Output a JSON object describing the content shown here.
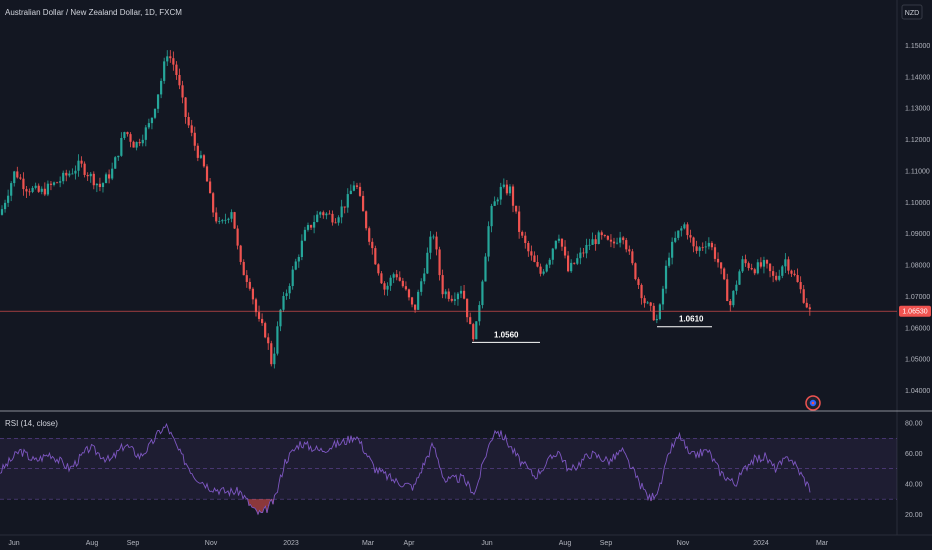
{
  "chart_data": [
    {
      "type": "candlestick",
      "title": "Australian Dollar / New Zealand Dollar, 1D, FXCM",
      "currency": "NZD",
      "last_price": "1.06530",
      "ylim": [
        1.037,
        1.153
      ],
      "yticks": [
        "1.15000",
        "1.14000",
        "1.13000",
        "1.12000",
        "1.11000",
        "1.10000",
        "1.09000",
        "1.08000",
        "1.07000",
        "1.06000",
        "1.05000",
        "1.04000"
      ],
      "x_labels": [
        "Jun",
        "Aug",
        "Sep",
        "Nov",
        "2023",
        "Mar",
        "Apr",
        "Jun",
        "Aug",
        "Sep",
        "Nov",
        "2024",
        "Mar"
      ],
      "price_path": [
        [
          0,
          1.096
        ],
        [
          15,
          1.11
        ],
        [
          25,
          1.105
        ],
        [
          40,
          1.103
        ],
        [
          60,
          1.107
        ],
        [
          80,
          1.112
        ],
        [
          100,
          1.105
        ],
        [
          112,
          1.11
        ],
        [
          125,
          1.123
        ],
        [
          135,
          1.118
        ],
        [
          150,
          1.125
        ],
        [
          162,
          1.14
        ],
        [
          167,
          1.148
        ],
        [
          175,
          1.143
        ],
        [
          185,
          1.128
        ],
        [
          195,
          1.118
        ],
        [
          205,
          1.11
        ],
        [
          212,
          1.098
        ],
        [
          220,
          1.092
        ],
        [
          232,
          1.098
        ],
        [
          240,
          1.08
        ],
        [
          250,
          1.074
        ],
        [
          258,
          1.062
        ],
        [
          266,
          1.058
        ],
        [
          272,
          1.048
        ],
        [
          280,
          1.065
        ],
        [
          290,
          1.075
        ],
        [
          305,
          1.09
        ],
        [
          320,
          1.097
        ],
        [
          335,
          1.095
        ],
        [
          348,
          1.101
        ],
        [
          355,
          1.107
        ],
        [
          365,
          1.094
        ],
        [
          375,
          1.082
        ],
        [
          385,
          1.072
        ],
        [
          395,
          1.078
        ],
        [
          405,
          1.072
        ],
        [
          414,
          1.065
        ],
        [
          425,
          1.08
        ],
        [
          433,
          1.091
        ],
        [
          442,
          1.072
        ],
        [
          452,
          1.07
        ],
        [
          462,
          1.073
        ],
        [
          470,
          1.06
        ],
        [
          475,
          1.057
        ],
        [
          482,
          1.075
        ],
        [
          490,
          1.096
        ],
        [
          500,
          1.104
        ],
        [
          510,
          1.104
        ],
        [
          520,
          1.09
        ],
        [
          530,
          1.083
        ],
        [
          540,
          1.077
        ],
        [
          550,
          1.083
        ],
        [
          558,
          1.091
        ],
        [
          568,
          1.078
        ],
        [
          578,
          1.082
        ],
        [
          590,
          1.087
        ],
        [
          600,
          1.089
        ],
        [
          612,
          1.086
        ],
        [
          622,
          1.091
        ],
        [
          632,
          1.08
        ],
        [
          645,
          1.068
        ],
        [
          658,
          1.062
        ],
        [
          668,
          1.083
        ],
        [
          678,
          1.09
        ],
        [
          685,
          1.093
        ],
        [
          695,
          1.084
        ],
        [
          708,
          1.088
        ],
        [
          718,
          1.081
        ],
        [
          730,
          1.067
        ],
        [
          742,
          1.081
        ],
        [
          755,
          1.079
        ],
        [
          765,
          1.08
        ],
        [
          775,
          1.075
        ],
        [
          785,
          1.082
        ],
        [
          795,
          1.076
        ],
        [
          810,
          1.065
        ]
      ],
      "annotations": [
        {
          "text": "1.0560",
          "price": 1.056,
          "x_start": 472,
          "x_end": 540
        },
        {
          "text": "1.0610",
          "price": 1.061,
          "x_start": 657,
          "x_end": 712
        }
      ],
      "colors": {
        "up": "#26a69a",
        "down": "#ef5350",
        "background": "#131722",
        "price_line": "#ef5350",
        "annotation": "#ffffff"
      },
      "grid": false
    },
    {
      "type": "line",
      "title": "RSI (14, close)",
      "ylim": [
        15,
        82
      ],
      "yticks": [
        "80.00",
        "60.00",
        "40.00",
        "20.00"
      ],
      "bands": [
        70,
        50,
        30
      ],
      "rsi_path": [
        [
          0,
          48
        ],
        [
          20,
          62
        ],
        [
          35,
          55
        ],
        [
          50,
          60
        ],
        [
          70,
          50
        ],
        [
          90,
          64
        ],
        [
          110,
          55
        ],
        [
          125,
          66
        ],
        [
          140,
          58
        ],
        [
          150,
          65
        ],
        [
          160,
          75
        ],
        [
          167,
          78
        ],
        [
          180,
          60
        ],
        [
          195,
          45
        ],
        [
          210,
          38
        ],
        [
          225,
          35
        ],
        [
          240,
          35
        ],
        [
          255,
          22
        ],
        [
          262,
          20
        ],
        [
          275,
          30
        ],
        [
          285,
          55
        ],
        [
          300,
          67
        ],
        [
          320,
          62
        ],
        [
          345,
          68
        ],
        [
          356,
          72
        ],
        [
          375,
          50
        ],
        [
          395,
          42
        ],
        [
          414,
          38
        ],
        [
          425,
          55
        ],
        [
          433,
          66
        ],
        [
          445,
          42
        ],
        [
          462,
          44
        ],
        [
          475,
          34
        ],
        [
          485,
          58
        ],
        [
          495,
          76
        ],
        [
          505,
          70
        ],
        [
          520,
          55
        ],
        [
          535,
          45
        ],
        [
          558,
          62
        ],
        [
          570,
          48
        ],
        [
          590,
          60
        ],
        [
          610,
          55
        ],
        [
          622,
          62
        ],
        [
          640,
          40
        ],
        [
          650,
          30
        ],
        [
          660,
          38
        ],
        [
          670,
          62
        ],
        [
          680,
          72
        ],
        [
          690,
          58
        ],
        [
          708,
          62
        ],
        [
          720,
          48
        ],
        [
          735,
          40
        ],
        [
          750,
          55
        ],
        [
          765,
          58
        ],
        [
          775,
          50
        ],
        [
          790,
          58
        ],
        [
          810,
          37
        ]
      ],
      "line_color": "#7e57c2",
      "band_color": "#7e57c2"
    }
  ],
  "icon": "logo-badge-icon"
}
